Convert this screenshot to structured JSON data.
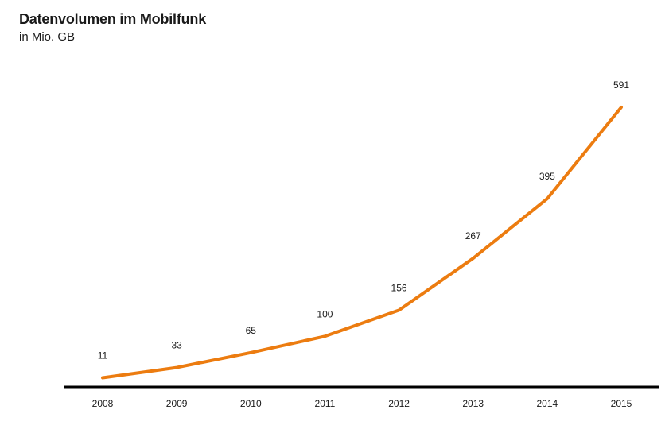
{
  "chart_data": {
    "type": "line",
    "title": "Datenvolumen im Mobilfunk",
    "subtitle": "in Mio. GB",
    "xlabel": "",
    "ylabel": "",
    "categories": [
      "2008",
      "2009",
      "2010",
      "2011",
      "2012",
      "2013",
      "2014",
      "2015"
    ],
    "series": [
      {
        "values": [
          11,
          33,
          65,
          100,
          156,
          267,
          395,
          591
        ],
        "color": "#ec7c10"
      }
    ],
    "data_labels": [
      "11",
      "33",
      "65",
      "100",
      "156",
      "267",
      "395",
      "591"
    ],
    "ylim": [
      0,
      600
    ],
    "grid": false,
    "legend": "none",
    "axis_color": "#000000"
  }
}
